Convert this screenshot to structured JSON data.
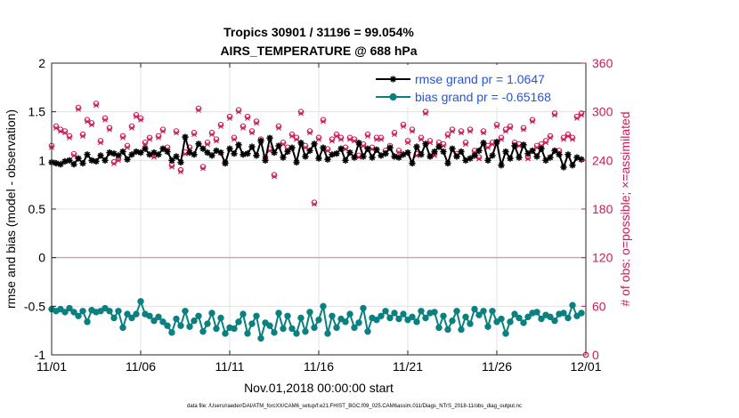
{
  "chart_data": {
    "type": "line",
    "title_line1": "Tropics 30901 / 31196 = 99.054%",
    "title_line2": "AIRS_TEMPERATURE @ 688 hPa",
    "xlabel": "Nov.01,2018 00:00:00 start",
    "ylabel_left": "rmse and bias (model - observation)",
    "ylabel_right": "# of obs: o=possible; ×=assimilated",
    "footnote": "data file: /Users/raeder/DAI/ATM_forcXX/CAM6_setup/f.e21.FHIST_BGC.f09_025.CAM6assim.011/Diags_NTrS_2018-11/obs_diag_output.nc",
    "xlim": [
      0,
      30
    ],
    "ylim_left": [
      -1,
      2
    ],
    "ylim_right": [
      0,
      360
    ],
    "x_ticks": [
      0,
      5,
      10,
      15,
      20,
      25,
      30
    ],
    "x_tick_labels": [
      "11/01",
      "11/06",
      "11/11",
      "11/16",
      "11/21",
      "11/26",
      "12/01"
    ],
    "y_ticks_left": [
      -1,
      -0.5,
      0,
      0.5,
      1,
      1.5,
      2
    ],
    "y_tick_labels_left": [
      "-1",
      "-0.5",
      "0",
      "0.5",
      "1",
      "1.5",
      "2"
    ],
    "y_ticks_right": [
      0,
      60,
      120,
      180,
      240,
      300,
      360
    ],
    "y_tick_labels_right": [
      "0",
      "60",
      "120",
      "180",
      "240",
      "300",
      "360"
    ],
    "grid": true,
    "legend_position": "top-right",
    "colors": {
      "rmse": "#000000",
      "bias": "#0a8080",
      "obs": "#cc1a5a",
      "zero_line": "#c8a8ae",
      "legend_text": "#2255dd"
    },
    "series": [
      {
        "name": "rmse grand pr = 1.0647",
        "x": [
          0.0,
          0.25,
          0.5,
          0.75,
          1.0,
          1.25,
          1.5,
          1.75,
          2.0,
          2.25,
          2.5,
          2.75,
          3.0,
          3.25,
          3.5,
          3.75,
          4.0,
          4.25,
          4.5,
          4.75,
          5.0,
          5.25,
          5.5,
          5.75,
          6.0,
          6.25,
          6.5,
          6.75,
          7.0,
          7.25,
          7.5,
          7.75,
          8.0,
          8.25,
          8.5,
          8.75,
          9.0,
          9.25,
          9.5,
          9.75,
          10.0,
          10.25,
          10.5,
          10.75,
          11.0,
          11.25,
          11.5,
          11.75,
          12.0,
          12.25,
          12.5,
          12.75,
          13.0,
          13.25,
          13.5,
          13.75,
          14.0,
          14.25,
          14.5,
          14.75,
          15.0,
          15.25,
          15.5,
          15.75,
          16.0,
          16.25,
          16.5,
          16.75,
          17.0,
          17.25,
          17.5,
          17.75,
          18.0,
          18.25,
          18.5,
          18.75,
          19.0,
          19.25,
          19.5,
          19.75,
          20.0,
          20.25,
          20.5,
          20.75,
          21.0,
          21.25,
          21.5,
          21.75,
          22.0,
          22.25,
          22.5,
          22.75,
          23.0,
          23.25,
          23.5,
          23.75,
          24.0,
          24.25,
          24.5,
          24.75,
          25.0,
          25.25,
          25.5,
          25.75,
          26.0,
          26.25,
          26.5,
          26.75,
          27.0,
          27.25,
          27.5,
          27.75,
          28.0,
          28.25,
          28.5,
          28.75,
          29.0,
          29.25,
          29.5,
          29.75
        ],
        "values": [
          0.98,
          0.97,
          0.96,
          0.99,
          1.0,
          0.96,
          1.02,
          0.97,
          1.06,
          1.0,
          0.99,
          1.05,
          1.0,
          1.08,
          1.07,
          1.05,
          1.09,
          1.01,
          1.06,
          1.09,
          1.08,
          1.12,
          1.06,
          1.08,
          1.06,
          1.12,
          1.09,
          1.0,
          1.04,
          0.98,
          1.24,
          1.08,
          1.06,
          1.17,
          1.12,
          1.08,
          1.05,
          1.1,
          1.08,
          0.97,
          1.12,
          1.07,
          1.16,
          1.06,
          1.07,
          1.14,
          1.05,
          1.2,
          1.0,
          1.23,
          1.08,
          1.15,
          1.03,
          1.09,
          1.13,
          0.98,
          1.18,
          1.04,
          1.1,
          1.17,
          1.02,
          1.13,
          1.01,
          1.06,
          1.07,
          1.12,
          1.0,
          1.08,
          1.03,
          1.18,
          1.04,
          1.12,
          1.03,
          1.11,
          1.05,
          1.07,
          1.13,
          1.04,
          1.03,
          1.06,
          1.08,
          0.97,
          1.14,
          1.06,
          1.17,
          1.04,
          1.09,
          1.14,
          1.09,
          0.97,
          1.12,
          1.04,
          1.09,
          1.0,
          1.02,
          1.05,
          1.1,
          1.18,
          1.0,
          1.05,
          1.19,
          0.95,
          1.09,
          1.02,
          1.15,
          1.03,
          1.16,
          1.07,
          1.1,
          1.04,
          1.12,
          1.0,
          1.03,
          1.1,
          1.06,
          0.93,
          1.06,
          0.95,
          1.03,
          1.01
        ]
      },
      {
        "name": "bias grand pr = -0.65168",
        "x": [
          0.0,
          0.25,
          0.5,
          0.75,
          1.0,
          1.25,
          1.5,
          1.75,
          2.0,
          2.25,
          2.5,
          2.75,
          3.0,
          3.25,
          3.5,
          3.75,
          4.0,
          4.25,
          4.5,
          4.75,
          5.0,
          5.25,
          5.5,
          5.75,
          6.0,
          6.25,
          6.5,
          6.75,
          7.0,
          7.25,
          7.5,
          7.75,
          8.0,
          8.25,
          8.5,
          8.75,
          9.0,
          9.25,
          9.5,
          9.75,
          10.0,
          10.25,
          10.5,
          10.75,
          11.0,
          11.25,
          11.5,
          11.75,
          12.0,
          12.25,
          12.5,
          12.75,
          13.0,
          13.25,
          13.5,
          13.75,
          14.0,
          14.25,
          14.5,
          14.75,
          15.0,
          15.25,
          15.5,
          15.75,
          16.0,
          16.25,
          16.5,
          16.75,
          17.0,
          17.25,
          17.5,
          17.75,
          18.0,
          18.25,
          18.5,
          18.75,
          19.0,
          19.25,
          19.5,
          19.75,
          20.0,
          20.25,
          20.5,
          20.75,
          21.0,
          21.25,
          21.5,
          21.75,
          22.0,
          22.25,
          22.5,
          22.75,
          23.0,
          23.25,
          23.5,
          23.75,
          24.0,
          24.25,
          24.5,
          24.75,
          25.0,
          25.25,
          25.5,
          25.75,
          26.0,
          26.25,
          26.5,
          26.75,
          27.0,
          27.25,
          27.5,
          27.75,
          28.0,
          28.25,
          28.5,
          28.75,
          29.0,
          29.25,
          29.5,
          29.75
        ],
        "values": [
          -0.53,
          -0.55,
          -0.53,
          -0.56,
          -0.52,
          -0.56,
          -0.6,
          -0.55,
          -0.66,
          -0.54,
          -0.56,
          -0.55,
          -0.52,
          -0.55,
          -0.62,
          -0.55,
          -0.72,
          -0.58,
          -0.62,
          -0.58,
          -0.45,
          -0.58,
          -0.6,
          -0.65,
          -0.61,
          -0.66,
          -0.7,
          -0.77,
          -0.63,
          -0.7,
          -0.55,
          -0.71,
          -0.65,
          -0.6,
          -0.76,
          -0.68,
          -0.57,
          -0.73,
          -0.62,
          -0.78,
          -0.72,
          -0.73,
          -0.66,
          -0.58,
          -0.78,
          -0.68,
          -0.6,
          -0.83,
          -0.67,
          -0.7,
          -0.77,
          -0.57,
          -0.73,
          -0.6,
          -0.73,
          -0.78,
          -0.62,
          -0.76,
          -0.56,
          -0.72,
          -0.64,
          -0.5,
          -0.78,
          -0.6,
          -0.72,
          -0.63,
          -0.66,
          -0.58,
          -0.72,
          -0.67,
          -0.52,
          -0.76,
          -0.62,
          -0.64,
          -0.6,
          -0.55,
          -0.62,
          -0.57,
          -0.63,
          -0.58,
          -0.64,
          -0.61,
          -0.66,
          -0.55,
          -0.62,
          -0.57,
          -0.56,
          -0.72,
          -0.6,
          -0.74,
          -0.65,
          -0.55,
          -0.74,
          -0.61,
          -0.68,
          -0.53,
          -0.59,
          -0.55,
          -0.71,
          -0.55,
          -0.66,
          -0.63,
          -0.78,
          -0.66,
          -0.58,
          -0.62,
          -0.67,
          -0.61,
          -0.57,
          -0.56,
          -0.63,
          -0.59,
          -0.61,
          -0.65,
          -0.58,
          -0.57,
          -0.62,
          -0.49,
          -0.6,
          -0.57
        ]
      }
    ],
    "obs_possible": {
      "x": [
        0.0,
        0.25,
        0.5,
        0.75,
        1.0,
        1.25,
        1.5,
        1.75,
        2.0,
        2.25,
        2.5,
        2.75,
        3.0,
        3.25,
        3.5,
        3.75,
        4.0,
        4.25,
        4.5,
        4.75,
        5.0,
        5.25,
        5.5,
        5.75,
        6.0,
        6.25,
        6.5,
        6.75,
        7.0,
        7.25,
        7.5,
        7.75,
        8.0,
        8.25,
        8.5,
        8.75,
        9.0,
        9.25,
        9.5,
        9.75,
        10.0,
        10.25,
        10.5,
        10.75,
        11.0,
        11.25,
        11.5,
        11.75,
        12.0,
        12.25,
        12.5,
        12.75,
        13.0,
        13.25,
        13.5,
        13.75,
        14.0,
        14.25,
        14.5,
        14.75,
        15.0,
        15.25,
        15.5,
        15.75,
        16.0,
        16.25,
        16.5,
        16.75,
        17.0,
        17.25,
        17.5,
        17.75,
        18.0,
        18.25,
        18.5,
        18.75,
        19.0,
        19.25,
        19.5,
        19.75,
        20.0,
        20.25,
        20.5,
        20.75,
        21.0,
        21.25,
        21.5,
        21.75,
        22.0,
        22.25,
        22.5,
        22.75,
        23.0,
        23.25,
        23.5,
        23.75,
        24.0,
        24.25,
        24.5,
        24.75,
        25.0,
        25.25,
        25.5,
        25.75,
        26.0,
        26.25,
        26.5,
        26.75,
        27.0,
        27.25,
        27.5,
        27.75,
        28.0,
        28.25,
        28.5,
        28.75,
        29.0,
        29.25,
        29.5,
        29.75
      ],
      "values": [
        258,
        282,
        278,
        276,
        270,
        248,
        305,
        272,
        290,
        286,
        310,
        264,
        292,
        280,
        238,
        242,
        270,
        258,
        282,
        296,
        292,
        262,
        268,
        246,
        270,
        278,
        256,
        234,
        276,
        228,
        250,
        256,
        274,
        304,
        232,
        262,
        274,
        266,
        284,
        238,
        294,
        268,
        302,
        282,
        294,
        276,
        288,
        266,
        244,
        254,
        222,
        282,
        262,
        256,
        272,
        268,
        300,
        258,
        276,
        188,
        268,
        290,
        254,
        266,
        272,
        268,
        256,
        268,
        266,
        246,
        260,
        272,
        256,
        268,
        268,
        252,
        258,
        274,
        252,
        284,
        264,
        278,
        248,
        268,
        300,
        264,
        248,
        262,
        260,
        272,
        278,
        248,
        276,
        262,
        278,
        252,
        244,
        276,
        258,
        262,
        284,
        268,
        278,
        282,
        262,
        260,
        280,
        244,
        290,
        258,
        260,
        264,
        270,
        298,
        252,
        268,
        272,
        268,
        294,
        298
      ]
    },
    "obs_assimilated": {
      "x": [
        0.0,
        0.25,
        0.5,
        0.75,
        1.0,
        1.25,
        1.5,
        1.75,
        2.0,
        2.25,
        2.5,
        2.75,
        3.0,
        3.25,
        3.5,
        3.75,
        4.0,
        4.25,
        4.5,
        4.75,
        5.0,
        5.25,
        5.5,
        5.75,
        6.0,
        6.25,
        6.5,
        6.75,
        7.0,
        7.25,
        7.5,
        7.75,
        8.0,
        8.25,
        8.5,
        8.75,
        9.0,
        9.25,
        9.5,
        9.75,
        10.0,
        10.25,
        10.5,
        10.75,
        11.0,
        11.25,
        11.5,
        11.75,
        12.0,
        12.25,
        12.5,
        12.75,
        13.0,
        13.25,
        13.5,
        13.75,
        14.0,
        14.25,
        14.5,
        14.75,
        15.0,
        15.25,
        15.5,
        15.75,
        16.0,
        16.25,
        16.5,
        16.75,
        17.0,
        17.25,
        17.5,
        17.75,
        18.0,
        18.25,
        18.5,
        18.75,
        19.0,
        19.25,
        19.5,
        19.75,
        20.0,
        20.25,
        20.5,
        20.75,
        21.0,
        21.25,
        21.5,
        21.75,
        22.0,
        22.25,
        22.5,
        22.75,
        23.0,
        23.25,
        23.5,
        23.75,
        24.0,
        24.25,
        24.5,
        24.75,
        25.0,
        25.25,
        25.5,
        25.75,
        26.0,
        26.25,
        26.5,
        26.75,
        27.0,
        27.25,
        27.5,
        27.75,
        28.0,
        28.25,
        28.5,
        28.75,
        29.0,
        29.25,
        29.5,
        29.75
      ],
      "values": [
        256,
        280,
        276,
        274,
        268,
        246,
        303,
        270,
        288,
        284,
        308,
        262,
        290,
        278,
        236,
        240,
        268,
        256,
        280,
        294,
        290,
        260,
        266,
        244,
        268,
        276,
        254,
        232,
        274,
        226,
        248,
        254,
        272,
        302,
        230,
        260,
        272,
        264,
        282,
        236,
        292,
        266,
        300,
        280,
        292,
        274,
        286,
        264,
        242,
        252,
        220,
        280,
        260,
        254,
        270,
        266,
        298,
        256,
        274,
        186,
        266,
        288,
        252,
        264,
        270,
        266,
        254,
        266,
        264,
        244,
        258,
        270,
        254,
        266,
        266,
        250,
        256,
        272,
        250,
        282,
        262,
        276,
        246,
        266,
        298,
        262,
        246,
        260,
        258,
        270,
        276,
        246,
        274,
        260,
        276,
        250,
        242,
        274,
        256,
        260,
        282,
        266,
        276,
        280,
        260,
        258,
        278,
        242,
        288,
        256,
        258,
        262,
        268,
        296,
        250,
        266,
        270,
        266,
        292,
        296
      ]
    },
    "obs_endpoint_x": 30,
    "obs_endpoint_value": 0
  }
}
